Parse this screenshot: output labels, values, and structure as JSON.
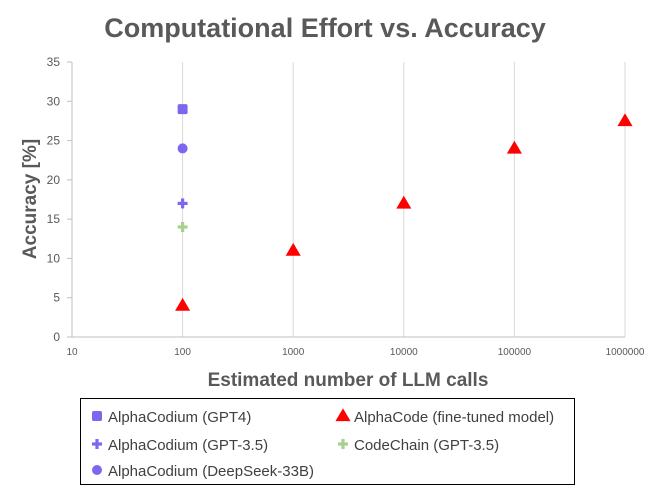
{
  "chart_data": {
    "type": "scatter",
    "title": "Computational Effort vs. Accuracy",
    "xlabel": "Estimated number of LLM calls",
    "ylabel": "Accuracy [%]",
    "x_scale": "log",
    "xlim": [
      10,
      1000000
    ],
    "ylim": [
      0,
      35
    ],
    "x_ticks": [
      "10",
      "100",
      "1000",
      "10000",
      "100000",
      "1000000"
    ],
    "y_ticks": [
      "0",
      "5",
      "10",
      "15",
      "20",
      "25",
      "30",
      "35"
    ],
    "grid": "vertical",
    "legend_position": "bottom",
    "series": [
      {
        "name": "AlphaCodium (GPT4)",
        "marker": "square",
        "color": "#7B68EE",
        "x": [
          100
        ],
        "y": [
          29
        ]
      },
      {
        "name": "AlphaCode (fine-tuned model)",
        "marker": "triangle",
        "color": "#FF0000",
        "x": [
          100,
          1000,
          10000,
          100000,
          1000000
        ],
        "y": [
          4,
          11,
          17,
          24,
          27.5
        ]
      },
      {
        "name": "AlphaCodium (GPT-3.5)",
        "marker": "plus",
        "color": "#7B68EE",
        "x": [
          100
        ],
        "y": [
          17
        ]
      },
      {
        "name": "CodeChain (GPT-3.5)",
        "marker": "plus",
        "color": "#A9D18E",
        "x": [
          100
        ],
        "y": [
          14
        ]
      },
      {
        "name": "AlphaCodium (DeepSeek-33B)",
        "marker": "circle",
        "color": "#7B68EE",
        "x": [
          100
        ],
        "y": [
          24
        ]
      }
    ]
  }
}
